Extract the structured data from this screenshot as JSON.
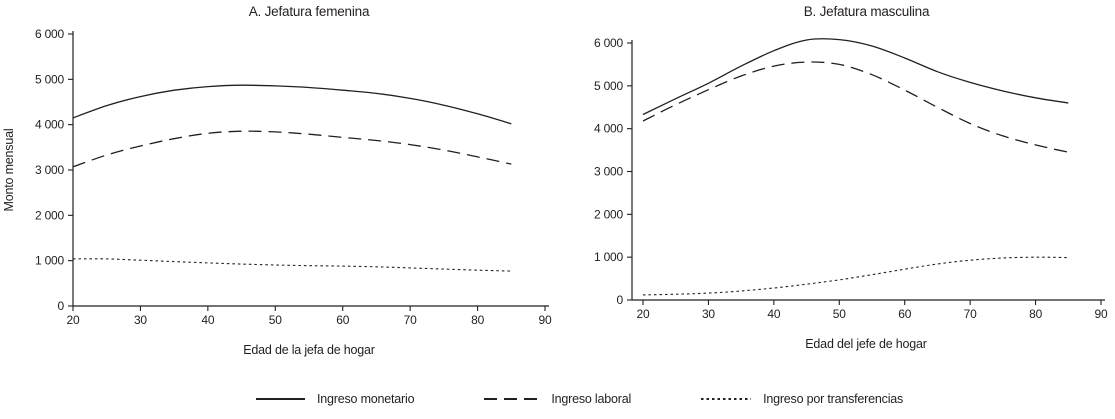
{
  "figure": {
    "background": "#ffffff",
    "line_color": "#231f20",
    "legend": [
      {
        "label": "Ingreso monetario",
        "style": "solid"
      },
      {
        "label": "Ingreso laboral",
        "style": "dashed"
      },
      {
        "label": "Ingreso por transferencias",
        "style": "dotted"
      }
    ]
  },
  "chart_data": [
    {
      "type": "line",
      "title": "A. Jefatura femenina",
      "xlabel": "Edad de la jefa de hogar",
      "ylabel": "Monto mensual",
      "xlim": [
        20,
        90
      ],
      "ylim": [
        0,
        6000
      ],
      "grid": false,
      "xticks": [
        20,
        30,
        40,
        50,
        60,
        70,
        80,
        90
      ],
      "yticks": [
        0,
        1000,
        2000,
        3000,
        4000,
        5000,
        6000
      ],
      "ytick_labels": [
        "0",
        "1 000",
        "2 000",
        "3 000",
        "4 000",
        "5 000",
        "6 000"
      ],
      "x": [
        20,
        25,
        30,
        35,
        40,
        45,
        50,
        55,
        60,
        65,
        70,
        75,
        80,
        85
      ],
      "series": [
        {
          "name": "Ingreso monetario",
          "style": "solid",
          "values": [
            4150,
            4420,
            4620,
            4760,
            4840,
            4870,
            4855,
            4820,
            4760,
            4690,
            4580,
            4430,
            4240,
            4020
          ]
        },
        {
          "name": "Ingreso laboral",
          "style": "dashed",
          "values": [
            3070,
            3330,
            3530,
            3690,
            3810,
            3855,
            3840,
            3790,
            3720,
            3650,
            3560,
            3440,
            3290,
            3130
          ]
        },
        {
          "name": "Ingreso por transferencias",
          "style": "dotted",
          "values": [
            1040,
            1040,
            1010,
            980,
            950,
            925,
            905,
            890,
            880,
            865,
            840,
            815,
            790,
            770
          ]
        }
      ]
    },
    {
      "type": "line",
      "title": "B. Jefatura masculina",
      "xlabel": "Edad del jefe de hogar",
      "ylabel": "",
      "xlim": [
        20,
        90
      ],
      "ylim": [
        0,
        6000
      ],
      "grid": false,
      "xticks": [
        20,
        30,
        40,
        50,
        60,
        70,
        80,
        90
      ],
      "yticks": [
        0,
        1000,
        2000,
        3000,
        4000,
        5000,
        6000
      ],
      "ytick_labels": [
        "0",
        "1 000",
        "2 000",
        "3 000",
        "4 000",
        "5 000",
        "6 000"
      ],
      "x": [
        20,
        25,
        30,
        35,
        40,
        45,
        50,
        55,
        60,
        65,
        70,
        75,
        80,
        85
      ],
      "series": [
        {
          "name": "Ingreso monetario",
          "style": "solid",
          "values": [
            4330,
            4700,
            5060,
            5460,
            5820,
            6070,
            6080,
            5930,
            5650,
            5330,
            5080,
            4880,
            4720,
            4600
          ]
        },
        {
          "name": "Ingreso laboral",
          "style": "dashed",
          "values": [
            4180,
            4560,
            4910,
            5230,
            5460,
            5555,
            5500,
            5260,
            4900,
            4500,
            4120,
            3830,
            3620,
            3450
          ]
        },
        {
          "name": "Ingreso por transferencias",
          "style": "dotted",
          "values": [
            120,
            135,
            160,
            210,
            280,
            370,
            470,
            590,
            720,
            840,
            930,
            980,
            1000,
            990
          ]
        }
      ]
    }
  ]
}
